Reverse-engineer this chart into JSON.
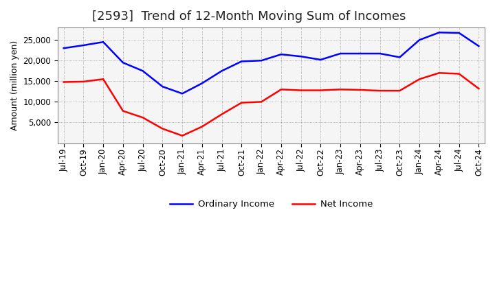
{
  "title": "[2593]  Trend of 12-Month Moving Sum of Incomes",
  "ylabel": "Amount (million yen)",
  "x_labels": [
    "Jul-19",
    "Oct-19",
    "Jan-20",
    "Apr-20",
    "Jul-20",
    "Oct-20",
    "Jan-21",
    "Apr-21",
    "Jul-21",
    "Oct-21",
    "Jan-22",
    "Apr-22",
    "Jul-22",
    "Oct-22",
    "Jan-23",
    "Apr-23",
    "Jul-23",
    "Oct-23",
    "Jan-24",
    "Apr-24",
    "Jul-24",
    "Oct-24"
  ],
  "ordinary_income": [
    23000,
    23700,
    24500,
    19500,
    17500,
    13700,
    12000,
    14500,
    17500,
    19800,
    20000,
    21500,
    21000,
    20200,
    21700,
    21700,
    21700,
    20800,
    25000,
    26800,
    26700,
    23500
  ],
  "net_income": [
    14800,
    14900,
    15500,
    7800,
    6200,
    3500,
    1800,
    4000,
    7000,
    9800,
    10000,
    13000,
    12800,
    12800,
    13000,
    12900,
    12700,
    12700,
    15500,
    17000,
    16800,
    13200
  ],
  "ordinary_color": "#0000ff",
  "net_color": "#ff0000",
  "ylim": [
    0,
    28000
  ],
  "yticks": [
    5000,
    10000,
    15000,
    20000,
    25000
  ],
  "grid_color": "#999999",
  "background_color": "#ffffff",
  "plot_bg_color": "#f5f5f5",
  "title_fontsize": 13,
  "label_fontsize": 9,
  "tick_fontsize": 8.5,
  "legend_fontsize": 9.5,
  "line_width": 1.8
}
